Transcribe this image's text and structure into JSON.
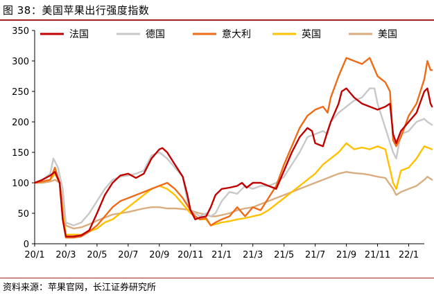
{
  "figure_title": "图 38：美国苹果出行强度指数",
  "source_text": "资料来源：苹果官网，长江证券研究所",
  "chart_data": {
    "type": "line",
    "title": "图 38：美国苹果出行强度指数",
    "xlabel": "",
    "ylabel": "",
    "ylim": [
      0,
      350
    ],
    "yticks": [
      0,
      50,
      100,
      150,
      200,
      250,
      300,
      350
    ],
    "xlim": [
      0,
      25
    ],
    "xticks": [
      {
        "label": "20/1",
        "x": 0
      },
      {
        "label": "20/3",
        "x": 2
      },
      {
        "label": "20/5",
        "x": 4
      },
      {
        "label": "20/7",
        "x": 6
      },
      {
        "label": "20/9",
        "x": 8
      },
      {
        "label": "20/11",
        "x": 10
      },
      {
        "label": "21/1",
        "x": 12
      },
      {
        "label": "21/3",
        "x": 14
      },
      {
        "label": "21/5",
        "x": 16
      },
      {
        "label": "21/7",
        "x": 18
      },
      {
        "label": "21/9",
        "x": 20
      },
      {
        "label": "21/11",
        "x": 22
      },
      {
        "label": "22/1",
        "x": 24
      }
    ],
    "legend_position": "top",
    "series": [
      {
        "name": "法国",
        "color": "#c00000",
        "points": [
          [
            0,
            100
          ],
          [
            0.5,
            105
          ],
          [
            1,
            112
          ],
          [
            1.3,
            118
          ],
          [
            1.6,
            100
          ],
          [
            1.8,
            40
          ],
          [
            2,
            12
          ],
          [
            2.5,
            12
          ],
          [
            3,
            14
          ],
          [
            3.5,
            22
          ],
          [
            4,
            50
          ],
          [
            4.5,
            80
          ],
          [
            5,
            100
          ],
          [
            5.5,
            112
          ],
          [
            6,
            115
          ],
          [
            6.5,
            108
          ],
          [
            7,
            115
          ],
          [
            7.5,
            140
          ],
          [
            8,
            155
          ],
          [
            8.2,
            157
          ],
          [
            8.5,
            150
          ],
          [
            9,
            130
          ],
          [
            9.5,
            110
          ],
          [
            9.8,
            80
          ],
          [
            10,
            55
          ],
          [
            10.3,
            40
          ],
          [
            10.6,
            43
          ],
          [
            11,
            45
          ],
          [
            11.3,
            60
          ],
          [
            11.6,
            80
          ],
          [
            12,
            90
          ],
          [
            12.5,
            92
          ],
          [
            13,
            95
          ],
          [
            13.3,
            100
          ],
          [
            13.6,
            92
          ],
          [
            14,
            100
          ],
          [
            14.5,
            100
          ],
          [
            15,
            95
          ],
          [
            15.5,
            90
          ],
          [
            16,
            120
          ],
          [
            16.5,
            150
          ],
          [
            17,
            175
          ],
          [
            17.5,
            190
          ],
          [
            17.8,
            185
          ],
          [
            18,
            165
          ],
          [
            18.5,
            160
          ],
          [
            18.8,
            185
          ],
          [
            19,
            200
          ],
          [
            19.5,
            230
          ],
          [
            19.7,
            250
          ],
          [
            20,
            255
          ],
          [
            20.5,
            240
          ],
          [
            21,
            230
          ],
          [
            21.5,
            225
          ],
          [
            22,
            220
          ],
          [
            22.5,
            225
          ],
          [
            22.8,
            230
          ],
          [
            23,
            180
          ],
          [
            23.2,
            165
          ],
          [
            23.5,
            185
          ],
          [
            24,
            200
          ],
          [
            24.5,
            215
          ],
          [
            25,
            250
          ],
          [
            25.2,
            255
          ],
          [
            25.4,
            230
          ],
          [
            25.5,
            225
          ]
        ]
      },
      {
        "name": "德国",
        "color": "#c8c8c8",
        "points": [
          [
            0,
            100
          ],
          [
            0.5,
            105
          ],
          [
            1,
            115
          ],
          [
            1.2,
            140
          ],
          [
            1.5,
            125
          ],
          [
            1.8,
            90
          ],
          [
            2,
            35
          ],
          [
            2.5,
            30
          ],
          [
            3,
            35
          ],
          [
            3.5,
            50
          ],
          [
            4,
            70
          ],
          [
            4.5,
            90
          ],
          [
            5,
            105
          ],
          [
            5.5,
            110
          ],
          [
            6,
            112
          ],
          [
            6.5,
            115
          ],
          [
            7,
            120
          ],
          [
            7.5,
            145
          ],
          [
            8,
            150
          ],
          [
            8.5,
            140
          ],
          [
            9,
            125
          ],
          [
            9.5,
            110
          ],
          [
            9.8,
            70
          ],
          [
            10,
            55
          ],
          [
            10.3,
            50
          ],
          [
            10.6,
            45
          ],
          [
            11,
            50
          ],
          [
            11.3,
            45
          ],
          [
            11.6,
            50
          ],
          [
            12,
            70
          ],
          [
            12.5,
            85
          ],
          [
            13,
            82
          ],
          [
            13.5,
            95
          ],
          [
            14,
            90
          ],
          [
            14.5,
            95
          ],
          [
            15,
            95
          ],
          [
            15.5,
            100
          ],
          [
            16,
            110
          ],
          [
            16.5,
            130
          ],
          [
            17,
            150
          ],
          [
            17.5,
            175
          ],
          [
            18,
            180
          ],
          [
            18.5,
            185
          ],
          [
            18.8,
            180
          ],
          [
            19,
            200
          ],
          [
            19.5,
            215
          ],
          [
            20,
            225
          ],
          [
            20.5,
            235
          ],
          [
            21,
            240
          ],
          [
            21.5,
            255
          ],
          [
            21.8,
            255
          ],
          [
            22,
            230
          ],
          [
            22.5,
            190
          ],
          [
            23,
            150
          ],
          [
            23.2,
            140
          ],
          [
            23.5,
            180
          ],
          [
            24,
            185
          ],
          [
            24.5,
            200
          ],
          [
            25,
            205
          ],
          [
            25.2,
            200
          ],
          [
            25.5,
            195
          ]
        ]
      },
      {
        "name": "意大利",
        "color": "#ee6b18",
        "points": [
          [
            0,
            100
          ],
          [
            0.5,
            102
          ],
          [
            1,
            105
          ],
          [
            1.3,
            125
          ],
          [
            1.6,
            100
          ],
          [
            1.8,
            40
          ],
          [
            2,
            10
          ],
          [
            2.5,
            10
          ],
          [
            3,
            12
          ],
          [
            3.5,
            20
          ],
          [
            4,
            30
          ],
          [
            4.5,
            45
          ],
          [
            5,
            60
          ],
          [
            5.5,
            70
          ],
          [
            6,
            75
          ],
          [
            6.5,
            80
          ],
          [
            7,
            85
          ],
          [
            7.5,
            90
          ],
          [
            8,
            95
          ],
          [
            8.5,
            100
          ],
          [
            9,
            90
          ],
          [
            9.5,
            75
          ],
          [
            10,
            55
          ],
          [
            10.3,
            45
          ],
          [
            10.6,
            40
          ],
          [
            11,
            42
          ],
          [
            11.3,
            30
          ],
          [
            11.6,
            35
          ],
          [
            12,
            40
          ],
          [
            12.5,
            45
          ],
          [
            13,
            60
          ],
          [
            13.5,
            45
          ],
          [
            14,
            60
          ],
          [
            14.5,
            55
          ],
          [
            15,
            75
          ],
          [
            15.5,
            95
          ],
          [
            16,
            130
          ],
          [
            16.5,
            160
          ],
          [
            17,
            190
          ],
          [
            17.5,
            210
          ],
          [
            18,
            220
          ],
          [
            18.5,
            225
          ],
          [
            18.8,
            215
          ],
          [
            19,
            240
          ],
          [
            19.5,
            275
          ],
          [
            20,
            305
          ],
          [
            20.5,
            300
          ],
          [
            21,
            295
          ],
          [
            21.5,
            305
          ],
          [
            22,
            275
          ],
          [
            22.5,
            265
          ],
          [
            22.8,
            250
          ],
          [
            23,
            170
          ],
          [
            23.2,
            160
          ],
          [
            23.5,
            175
          ],
          [
            24,
            210
          ],
          [
            24.5,
            230
          ],
          [
            25,
            270
          ],
          [
            25.2,
            300
          ],
          [
            25.4,
            285
          ],
          [
            25.5,
            285
          ]
        ]
      },
      {
        "name": "英国",
        "color": "#ffc000",
        "points": [
          [
            0,
            100
          ],
          [
            0.5,
            102
          ],
          [
            1,
            105
          ],
          [
            1.3,
            115
          ],
          [
            1.6,
            100
          ],
          [
            1.8,
            50
          ],
          [
            2,
            15
          ],
          [
            2.5,
            15
          ],
          [
            3,
            15
          ],
          [
            3.5,
            20
          ],
          [
            4,
            25
          ],
          [
            4.5,
            35
          ],
          [
            5,
            40
          ],
          [
            5.5,
            50
          ],
          [
            6,
            60
          ],
          [
            6.5,
            70
          ],
          [
            7,
            80
          ],
          [
            7.5,
            90
          ],
          [
            8,
            95
          ],
          [
            8.5,
            90
          ],
          [
            9,
            80
          ],
          [
            9.5,
            65
          ],
          [
            10,
            50
          ],
          [
            10.3,
            45
          ],
          [
            10.6,
            40
          ],
          [
            11,
            40
          ],
          [
            11.3,
            30
          ],
          [
            11.6,
            32
          ],
          [
            12,
            35
          ],
          [
            12.5,
            37
          ],
          [
            13,
            40
          ],
          [
            13.5,
            42
          ],
          [
            14,
            45
          ],
          [
            14.5,
            48
          ],
          [
            15,
            55
          ],
          [
            15.5,
            65
          ],
          [
            16,
            75
          ],
          [
            16.5,
            85
          ],
          [
            17,
            95
          ],
          [
            17.5,
            105
          ],
          [
            18,
            115
          ],
          [
            18.5,
            130
          ],
          [
            19,
            140
          ],
          [
            19.5,
            150
          ],
          [
            20,
            165
          ],
          [
            20.5,
            155
          ],
          [
            21,
            158
          ],
          [
            21.5,
            155
          ],
          [
            22,
            160
          ],
          [
            22.5,
            155
          ],
          [
            23,
            100
          ],
          [
            23.2,
            90
          ],
          [
            23.5,
            120
          ],
          [
            24,
            125
          ],
          [
            24.5,
            140
          ],
          [
            25,
            160
          ],
          [
            25.2,
            158
          ],
          [
            25.5,
            155
          ]
        ]
      },
      {
        "name": "美国",
        "color": "#d9ad80",
        "points": [
          [
            0,
            100
          ],
          [
            0.5,
            100
          ],
          [
            1,
            102
          ],
          [
            1.3,
            105
          ],
          [
            1.6,
            100
          ],
          [
            1.8,
            70
          ],
          [
            2,
            30
          ],
          [
            2.5,
            25
          ],
          [
            3,
            27
          ],
          [
            3.5,
            32
          ],
          [
            4,
            38
          ],
          [
            4.5,
            43
          ],
          [
            5,
            48
          ],
          [
            5.5,
            50
          ],
          [
            6,
            52
          ],
          [
            6.5,
            55
          ],
          [
            7,
            58
          ],
          [
            7.5,
            60
          ],
          [
            8,
            60
          ],
          [
            8.5,
            58
          ],
          [
            9,
            58
          ],
          [
            9.5,
            57
          ],
          [
            10,
            55
          ],
          [
            10.3,
            52
          ],
          [
            10.6,
            50
          ],
          [
            11,
            48
          ],
          [
            11.3,
            45
          ],
          [
            11.6,
            45
          ],
          [
            12,
            47
          ],
          [
            12.5,
            50
          ],
          [
            13,
            55
          ],
          [
            13.5,
            58
          ],
          [
            14,
            60
          ],
          [
            14.5,
            65
          ],
          [
            15,
            70
          ],
          [
            15.5,
            75
          ],
          [
            16,
            80
          ],
          [
            16.5,
            85
          ],
          [
            17,
            90
          ],
          [
            17.5,
            95
          ],
          [
            18,
            100
          ],
          [
            18.5,
            105
          ],
          [
            19,
            110
          ],
          [
            19.5,
            115
          ],
          [
            20,
            118
          ],
          [
            20.5,
            116
          ],
          [
            21,
            115
          ],
          [
            21.5,
            113
          ],
          [
            22,
            110
          ],
          [
            22.5,
            108
          ],
          [
            23,
            90
          ],
          [
            23.2,
            80
          ],
          [
            23.5,
            85
          ],
          [
            24,
            90
          ],
          [
            24.5,
            95
          ],
          [
            25,
            105
          ],
          [
            25.2,
            110
          ],
          [
            25.5,
            105
          ]
        ]
      }
    ]
  }
}
